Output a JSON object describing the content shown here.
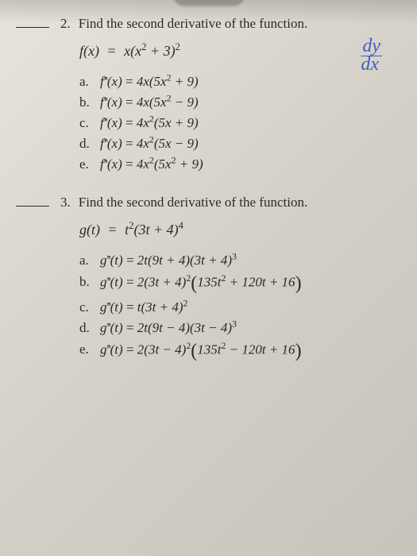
{
  "colors": {
    "paper_bg": "#d8d4cc",
    "text": "#2a2a2a",
    "handwriting": "#3a5fc8"
  },
  "handwriting": {
    "numerator": "dy",
    "denominator": "dx"
  },
  "q2": {
    "number": "2.",
    "prompt": "Find the second derivative of the function.",
    "formula_lhs": "f(x)",
    "formula_eq": "=",
    "formula_rhs_a": "x(x",
    "formula_rhs_exp1": "2",
    "formula_rhs_b": " + 3)",
    "formula_rhs_exp2": "2",
    "choices": {
      "a": {
        "label": "a.",
        "fn": "f",
        "primes": "''",
        "arg": "(x)",
        "eq": " = ",
        "p1": "4x(5x",
        "e1": "2",
        "p2": " + 9)"
      },
      "b": {
        "label": "b.",
        "fn": "f",
        "primes": "''",
        "arg": "(x)",
        "eq": " = ",
        "p1": "4x(5x",
        "e1": "2",
        "p2": " − 9)"
      },
      "c": {
        "label": "c.",
        "fn": "f",
        "primes": "''",
        "arg": "(x)",
        "eq": " = ",
        "p1": "4x",
        "e1": "2",
        "p2": "(5x + 9)"
      },
      "d": {
        "label": "d.",
        "fn": "f",
        "primes": "''",
        "arg": "(x)",
        "eq": " = ",
        "p1": "4x",
        "e1": "2",
        "p2": "(5x − 9)"
      },
      "e": {
        "label": "e.",
        "fn": "f",
        "primes": "''",
        "arg": "(x)",
        "eq": " = ",
        "p1": "4x",
        "e1": "2",
        "p2": "(5x",
        "e2": "2",
        "p3": " + 9)"
      }
    }
  },
  "q3": {
    "number": "3.",
    "prompt": "Find the second derivative of the function.",
    "formula_lhs": "g(t)",
    "formula_eq": "=",
    "formula_rhs_a": "t",
    "formula_rhs_exp1": "2",
    "formula_rhs_b": "(3t + 4)",
    "formula_rhs_exp2": "4",
    "choices": {
      "a": {
        "label": "a.",
        "fn": "g",
        "primes": "''",
        "arg": "(t)",
        "eq": " = ",
        "p1": "2t(9t + 4)(3t + 4)",
        "e1": "3"
      },
      "b": {
        "label": "b.",
        "fn": "g",
        "primes": "''",
        "arg": "(t)",
        "eq": " = ",
        "p1": "2(3t + 4)",
        "e1": "2",
        "bp1": "135t",
        "be1": "2",
        "bp2": " + 120t + 16"
      },
      "c": {
        "label": "c.",
        "fn": "g",
        "primes": "''",
        "arg": "(t)",
        "eq": " = ",
        "p1": "t(3t + 4)",
        "e1": "2"
      },
      "d": {
        "label": "d.",
        "fn": "g",
        "primes": "''",
        "arg": "(t)",
        "eq": " = ",
        "p1": "2t(9t − 4)(3t − 4)",
        "e1": "3"
      },
      "e": {
        "label": "e.",
        "fn": "g",
        "primes": "''",
        "arg": "(t)",
        "eq": " = ",
        "p1": "2(3t − 4)",
        "e1": "2",
        "bp1": "135t",
        "be1": "2",
        "bp2": " − 120t + 16"
      }
    }
  }
}
